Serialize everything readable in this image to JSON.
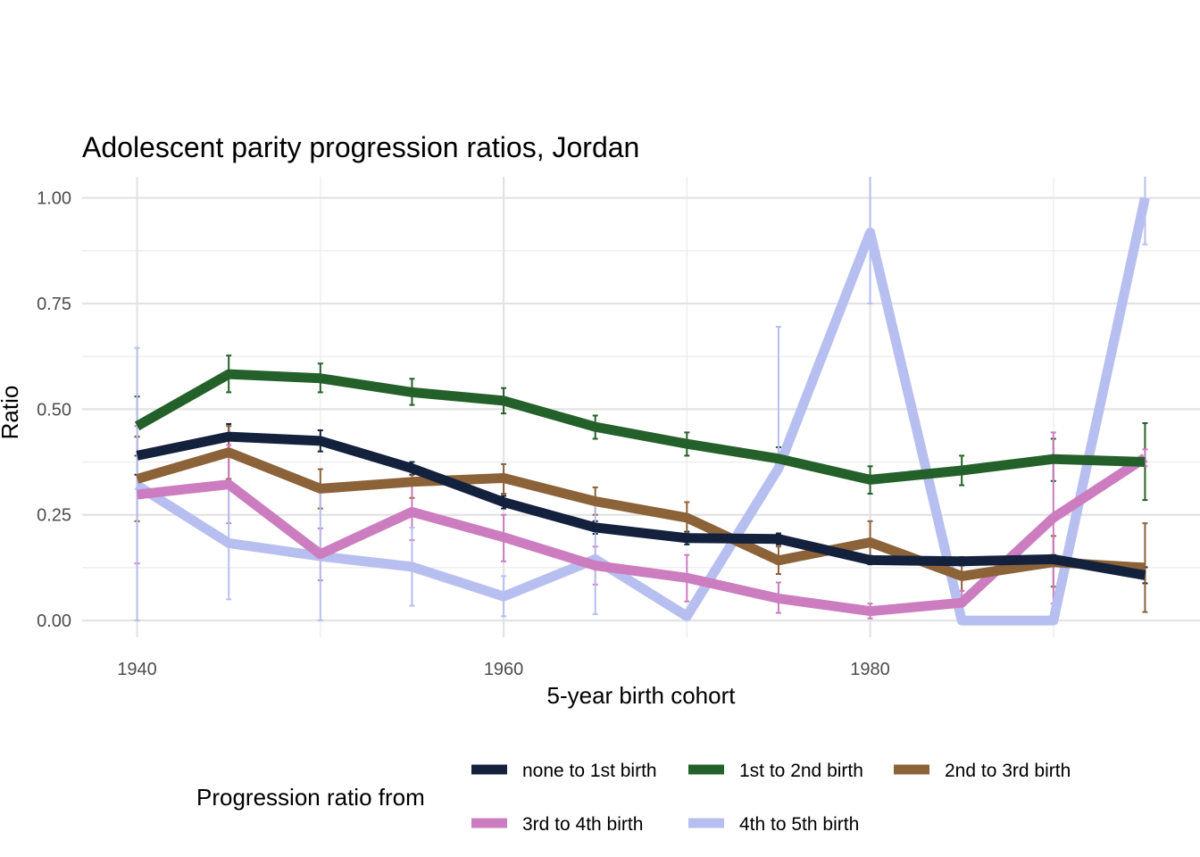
{
  "chart_data": {
    "type": "line",
    "title": "Adolescent parity progression ratios,  Jordan",
    "xlabel": "5-year birth cohort",
    "ylabel": "Ratio",
    "xlim": [
      1937,
      1998
    ],
    "ylim": [
      -0.04,
      1.05
    ],
    "x_ticks": [
      1940,
      1960,
      1980
    ],
    "x_tick_labels": [
      "1940",
      "1960",
      "1980"
    ],
    "y_ticks": [
      0,
      0.25,
      0.5,
      0.75,
      1.0
    ],
    "y_tick_labels": [
      "0.00",
      "0.25",
      "0.50",
      "0.75",
      "1.00"
    ],
    "grid": true,
    "legend_title": "Progression ratio from",
    "legend_position": "bottom",
    "x": [
      1940,
      1945,
      1950,
      1955,
      1960,
      1965,
      1970,
      1975,
      1980,
      1985,
      1990,
      1995
    ],
    "series": [
      {
        "name": "none to 1st birth",
        "color": "#14213d",
        "values": [
          0.39,
          0.435,
          0.425,
          0.36,
          0.28,
          0.22,
          0.195,
          0.193,
          0.143,
          0.14,
          0.145,
          0.107
        ],
        "lower": [
          0.345,
          0.405,
          0.4,
          0.345,
          0.265,
          0.205,
          0.18,
          0.18,
          0.133,
          0.13,
          0.135,
          0.088
        ],
        "upper": [
          0.435,
          0.465,
          0.45,
          0.375,
          0.295,
          0.235,
          0.21,
          0.206,
          0.153,
          0.15,
          0.155,
          0.126
        ]
      },
      {
        "name": "1st to 2nd birth",
        "color": "#24612a",
        "values": [
          0.46,
          0.583,
          0.573,
          0.54,
          0.52,
          0.458,
          0.418,
          0.383,
          0.333,
          0.355,
          0.382,
          0.375
        ],
        "lower": [
          0.39,
          0.54,
          0.54,
          0.51,
          0.49,
          0.43,
          0.39,
          0.355,
          0.3,
          0.32,
          0.33,
          0.285
        ],
        "upper": [
          0.53,
          0.627,
          0.608,
          0.572,
          0.55,
          0.485,
          0.445,
          0.41,
          0.365,
          0.39,
          0.43,
          0.467
        ]
      },
      {
        "name": "2nd to 3rd birth",
        "color": "#8c6239",
        "values": [
          0.335,
          0.398,
          0.312,
          0.328,
          0.337,
          0.282,
          0.243,
          0.142,
          0.185,
          0.105,
          0.138,
          0.125
        ],
        "lower": [
          0.235,
          0.335,
          0.265,
          0.29,
          0.3,
          0.25,
          0.205,
          0.11,
          0.135,
          0.07,
          0.08,
          0.02
        ],
        "upper": [
          0.435,
          0.46,
          0.358,
          0.367,
          0.37,
          0.315,
          0.28,
          0.175,
          0.235,
          0.14,
          0.2,
          0.23
        ]
      },
      {
        "name": "3rd to 4th birth",
        "color": "#cc7dc0",
        "values": [
          0.298,
          0.322,
          0.157,
          0.257,
          0.197,
          0.13,
          0.101,
          0.052,
          0.022,
          0.042,
          0.243,
          0.385
        ],
        "lower": [
          0.135,
          0.23,
          0.095,
          0.19,
          0.14,
          0.085,
          0.045,
          0.018,
          0.005,
          0.015,
          0.04,
          0.365
        ],
        "upper": [
          0.46,
          0.415,
          0.218,
          0.32,
          0.25,
          0.175,
          0.155,
          0.09,
          0.04,
          0.07,
          0.445,
          0.405
        ]
      },
      {
        "name": "4th to 5th birth",
        "color": "#b7bff0",
        "values": [
          0.32,
          0.183,
          0.152,
          0.127,
          0.057,
          0.145,
          0.01,
          0.36,
          0.918,
          0.0,
          0.0,
          1.0
        ],
        "lower": [
          0.0,
          0.05,
          0.0,
          0.035,
          0.01,
          0.015,
          0.005,
          0.36,
          0.75,
          0.0,
          0.0,
          0.89
        ],
        "upper": [
          0.645,
          0.315,
          0.305,
          0.22,
          0.105,
          0.275,
          0.015,
          0.695,
          1.09,
          0.0,
          0.0,
          1.11
        ]
      }
    ]
  }
}
